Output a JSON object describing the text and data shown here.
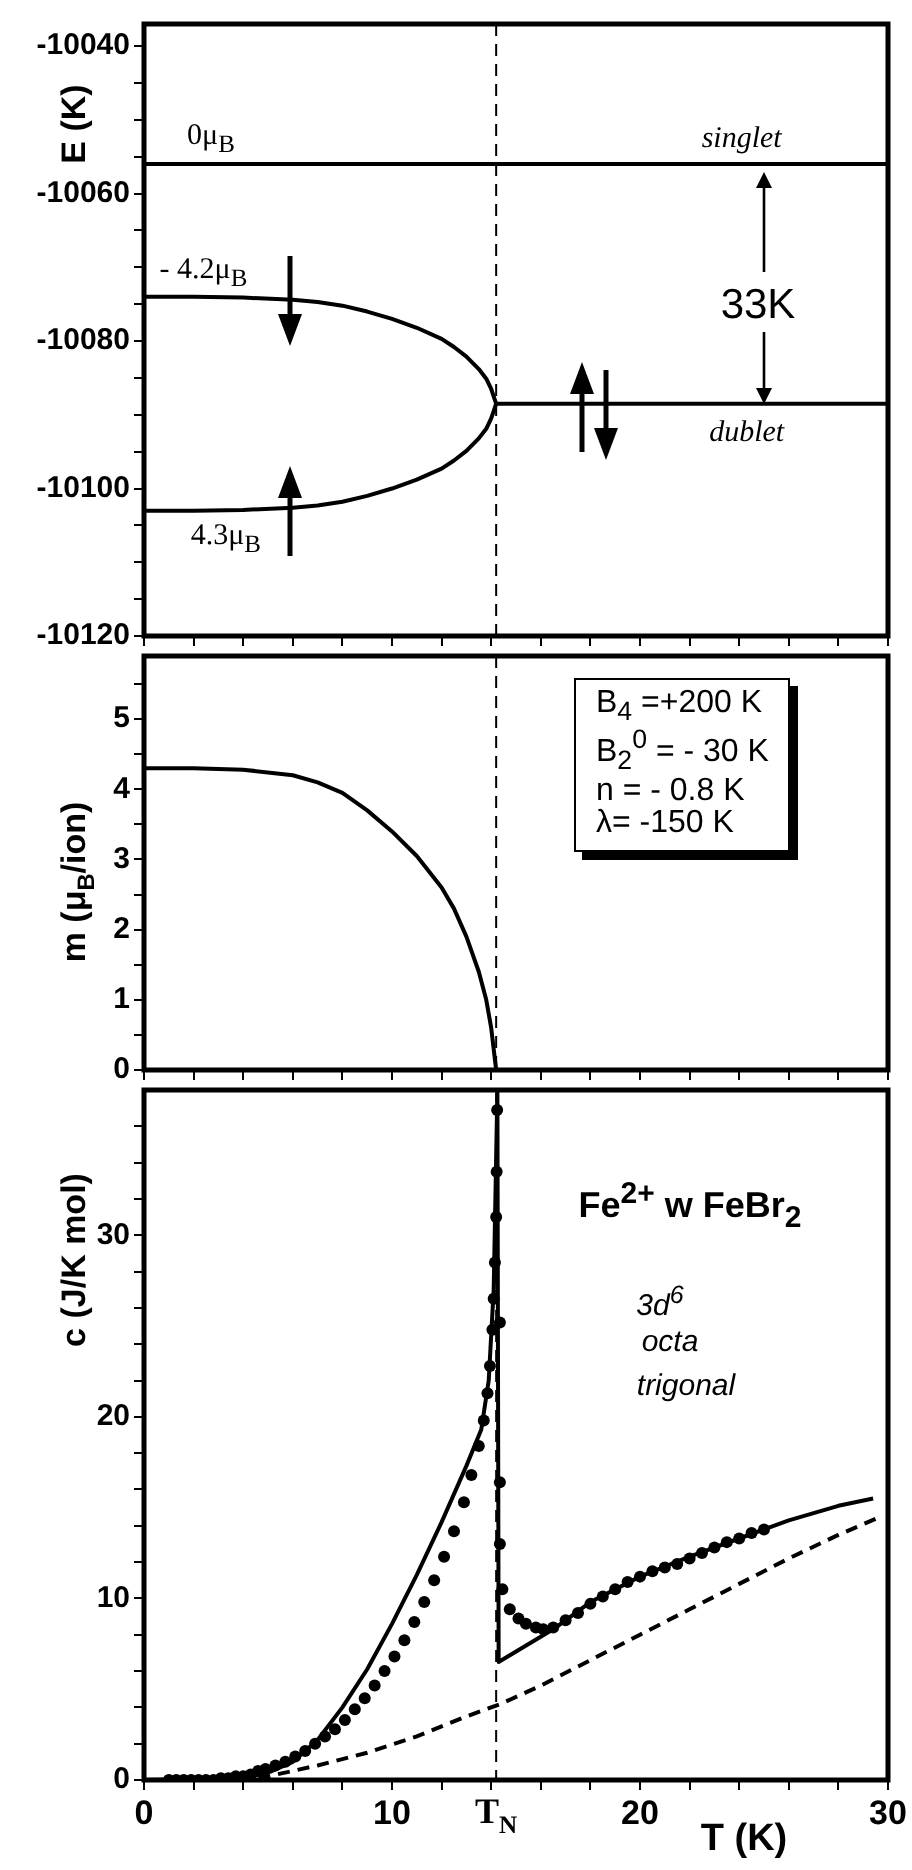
{
  "chart_data": [
    {
      "type": "line",
      "ylabel": "E (K)",
      "xlim": [
        0,
        30
      ],
      "ylim": [
        -10120,
        -10037
      ],
      "xticks": [
        0,
        {
          "value": 2,
          "label": null
        },
        {
          "value": 4,
          "label": null
        },
        {
          "value": 6,
          "label": null
        },
        {
          "value": 8,
          "label": null
        },
        10,
        {
          "value": 12,
          "label": null
        },
        {
          "value": 14,
          "label": null
        },
        {
          "value": 16,
          "label": null
        },
        {
          "value": 18,
          "label": null
        },
        20,
        {
          "value": 22,
          "label": null
        },
        {
          "value": 24,
          "label": null
        },
        {
          "value": 26,
          "label": null
        },
        {
          "value": 28,
          "label": null
        },
        30
      ],
      "yticks": [
        -10120,
        {
          "value": -10115,
          "label": null
        },
        {
          "value": -10110,
          "label": null
        },
        {
          "value": -10105,
          "label": null
        },
        -10100,
        {
          "value": -10095,
          "label": null
        },
        {
          "value": -10090,
          "label": null
        },
        {
          "value": -10085,
          "label": null
        },
        -10080,
        {
          "value": -10075,
          "label": null
        },
        {
          "value": -10070,
          "label": null
        },
        {
          "value": -10065,
          "label": null
        },
        -10060,
        {
          "value": -10055,
          "label": null
        },
        {
          "value": -10050,
          "label": null
        },
        {
          "value": -10045,
          "label": null
        },
        -10040
      ],
      "tick_labels": "y",
      "series": [
        {
          "color": "#000000",
          "x": [
            0,
            30
          ],
          "values": [
            -10056,
            -10056
          ]
        },
        {
          "color": "#000000",
          "x": [
            0,
            2,
            4,
            6,
            7,
            8,
            9,
            10,
            11,
            12,
            12.5,
            13,
            13.5,
            13.8,
            14,
            14.1,
            14.2
          ],
          "values": [
            -10074,
            -10074,
            -10074.1,
            -10074.4,
            -10074.7,
            -10075.2,
            -10076,
            -10077,
            -10078.2,
            -10079.7,
            -10080.8,
            -10082.1,
            -10083.8,
            -10085.1,
            -10086.5,
            -10087.5,
            -10088.5
          ]
        },
        {
          "color": "#000000",
          "x": [
            0,
            2,
            4,
            6,
            7,
            8,
            9,
            10,
            11,
            12,
            12.5,
            13,
            13.5,
            13.8,
            14,
            14.1,
            14.2
          ],
          "values": [
            -10103,
            -10103,
            -10102.9,
            -10102.6,
            -10102.3,
            -10101.8,
            -10101,
            -10100,
            -10098.8,
            -10097.3,
            -10096.2,
            -10094.9,
            -10093.2,
            -10091.9,
            -10090.5,
            -10089.5,
            -10088.5
          ]
        },
        {
          "color": "#000000",
          "x": [
            14.2,
            30
          ],
          "values": [
            -10088.5,
            -10088.5
          ]
        }
      ],
      "ref_lines": [
        {
          "axis": "x",
          "value": 14.2,
          "line_style": "dashed"
        }
      ],
      "annotations": [
        {
          "text": "0μ$_{B}$",
          "x": 2.7,
          "y": -10056
        },
        {
          "text": "- 4.2μ$_{B}$",
          "x": 2.4,
          "y": -10074
        },
        {
          "text": "4.3μ$_{B}$",
          "x": 3.3,
          "y": -10103
        },
        {
          "text": "singlet",
          "x": 24.1,
          "y": -10056
        },
        {
          "text": "dublet",
          "x": 24.3,
          "y": -10088.5
        },
        "33K"
      ]
    },
    {
      "type": "line",
      "ylabel": "m (μ$_{B}$/ion)",
      "xlim": [
        0,
        30
      ],
      "ylim": [
        0,
        5.9
      ],
      "xticks": [
        0,
        {
          "value": 2,
          "label": null
        },
        {
          "value": 4,
          "label": null
        },
        {
          "value": 6,
          "label": null
        },
        {
          "value": 8,
          "label": null
        },
        10,
        {
          "value": 12,
          "label": null
        },
        {
          "value": 14,
          "label": null
        },
        {
          "value": 16,
          "label": null
        },
        {
          "value": 18,
          "label": null
        },
        20,
        {
          "value": 22,
          "label": null
        },
        {
          "value": 24,
          "label": null
        },
        {
          "value": 26,
          "label": null
        },
        {
          "value": 28,
          "label": null
        },
        30
      ],
      "yticks": [
        0,
        {
          "value": 0.5,
          "label": null
        },
        1,
        {
          "value": 1.5,
          "label": null
        },
        2,
        {
          "value": 2.5,
          "label": null
        },
        3,
        {
          "value": 3.5,
          "label": null
        },
        4,
        {
          "value": 4.5,
          "label": null
        },
        5,
        {
          "value": 5.5,
          "label": null
        }
      ],
      "tick_labels": "y",
      "series": [
        {
          "color": "#000000",
          "x": [
            0,
            2,
            4,
            6,
            7,
            8,
            9,
            10,
            11,
            12,
            12.5,
            13,
            13.5,
            13.8,
            14,
            14.1,
            14.2
          ],
          "values": [
            4.3,
            4.3,
            4.28,
            4.2,
            4.1,
            3.95,
            3.7,
            3.4,
            3.05,
            2.6,
            2.3,
            1.9,
            1.4,
            1,
            0.6,
            0.3,
            0
          ]
        }
      ],
      "ref_lines": [
        {
          "axis": "x",
          "value": 14.2,
          "line_style": "dashed"
        }
      ],
      "annotations": [
        "B$_{4}$ =+200 K",
        "B$_{2}$$^{0}$ = - 30 K",
        "n = - 0.8 K",
        "λ= -150 K"
      ]
    },
    {
      "type": "line",
      "ylabel": "c (J/K mol)",
      "xlabel": "T (K)",
      "xlim": [
        0,
        30
      ],
      "ylim": [
        0,
        38
      ],
      "xticks": [
        0,
        {
          "value": 2,
          "label": null
        },
        {
          "value": 4,
          "label": null
        },
        {
          "value": 6,
          "label": null
        },
        {
          "value": 8,
          "label": null
        },
        10,
        {
          "value": 12,
          "label": null
        },
        {
          "value": 14,
          "label": null
        },
        {
          "value": 16,
          "label": null
        },
        {
          "value": 18,
          "label": null
        },
        20,
        {
          "value": 22,
          "label": null
        },
        {
          "value": 24,
          "label": null
        },
        {
          "value": 26,
          "label": null
        },
        {
          "value": 28,
          "label": null
        },
        30
      ],
      "yticks": [
        0,
        {
          "value": 2,
          "label": null
        },
        {
          "value": 4,
          "label": null
        },
        {
          "value": 6,
          "label": null
        },
        {
          "value": 8,
          "label": null
        },
        10,
        {
          "value": 12,
          "label": null
        },
        {
          "value": 14,
          "label": null
        },
        {
          "value": 16,
          "label": null
        },
        {
          "value": 18,
          "label": null
        },
        20,
        {
          "value": 22,
          "label": null
        },
        {
          "value": 24,
          "label": null
        },
        {
          "value": 26,
          "label": null
        },
        {
          "value": 28,
          "label": null
        },
        30,
        {
          "value": 32,
          "label": null
        },
        {
          "value": 34,
          "label": null
        },
        {
          "value": 36,
          "label": null
        }
      ],
      "series": [
        {
          "type": "scatter",
          "marker": "circle",
          "color": "#000000",
          "x": [
            1,
            1.3,
            1.6,
            1.9,
            2.2,
            2.5,
            2.8,
            3.1,
            3.4,
            3.7,
            4,
            4.3,
            4.6,
            4.9,
            5.3,
            5.7,
            6.1,
            6.5,
            6.9,
            7.3,
            7.7,
            8.1,
            8.5,
            8.9,
            9.3,
            9.7,
            10.1,
            10.5,
            10.9,
            11.3,
            11.7,
            12.1,
            12.5,
            12.9,
            13.2,
            13.5,
            13.7,
            13.85,
            13.95,
            14.05,
            14.1,
            14.15,
            14.2,
            14.22,
            14.24,
            14.35,
            14.35,
            14.35,
            14.45,
            14.75,
            15.1,
            15.4,
            15.8,
            16.1,
            16.5,
            17,
            17.5,
            18,
            18.5,
            19,
            19.5,
            20,
            20.5,
            21,
            21.5,
            22,
            22.5,
            23,
            23.5,
            24,
            24.5,
            25
          ],
          "values": [
            0,
            0,
            0,
            0,
            0,
            0,
            0,
            0.1,
            0.1,
            0.2,
            0.2,
            0.3,
            0.5,
            0.6,
            0.8,
            1,
            1.3,
            1.6,
            2,
            2.4,
            2.8,
            3.3,
            3.9,
            4.5,
            5.2,
            6,
            6.8,
            7.7,
            8.7,
            9.8,
            11,
            12.3,
            13.7,
            15.3,
            16.8,
            18.4,
            19.8,
            21.3,
            22.8,
            24.8,
            26.5,
            28.5,
            31,
            33.5,
            36.9,
            25.2,
            16.4,
            13,
            10.5,
            9.4,
            8.9,
            8.6,
            8.4,
            8.3,
            8.4,
            8.8,
            9.2,
            9.7,
            10.1,
            10.5,
            10.9,
            11.2,
            11.5,
            11.7,
            11.9,
            12.2,
            12.5,
            12.8,
            13.1,
            13.3,
            13.6,
            13.8
          ]
        },
        {
          "type": "line",
          "color": "#000000",
          "x": [
            0,
            4,
            5,
            6,
            7,
            8,
            9,
            10,
            11,
            12,
            13,
            13.6,
            13.9,
            14.1,
            14.25,
            14.3,
            16.5,
            18,
            20,
            22,
            24,
            26,
            28,
            29.4
          ],
          "values": [
            0,
            0.1,
            0.4,
            1,
            2.2,
            4,
            6.1,
            8.6,
            11.3,
            14.2,
            17.3,
            19.3,
            22,
            27,
            38,
            6.5,
            8.3,
            9.8,
            11.2,
            12.3,
            13.3,
            14.3,
            15.1,
            15.5
          ]
        },
        {
          "type": "line",
          "line_style": "dashed",
          "color": "#000000",
          "x": [
            3,
            5,
            7,
            9,
            11,
            13,
            14.4,
            16,
            18,
            20,
            22,
            24,
            26,
            28,
            29.7
          ],
          "values": [
            0,
            0.2,
            0.8,
            1.5,
            2.4,
            3.5,
            4.2,
            5.2,
            6.6,
            8,
            9.4,
            10.8,
            12.2,
            13.5,
            14.5
          ]
        }
      ],
      "ref_lines": [
        {
          "axis": "x",
          "value": 14.2,
          "line_style": "dashed",
          "label": "T$_{N}$"
        }
      ],
      "annotations": [
        "Fe$^{2+}$ w  FeBr$_{2}$",
        "3d$^{6}$",
        "octa",
        "trigonal"
      ]
    }
  ]
}
